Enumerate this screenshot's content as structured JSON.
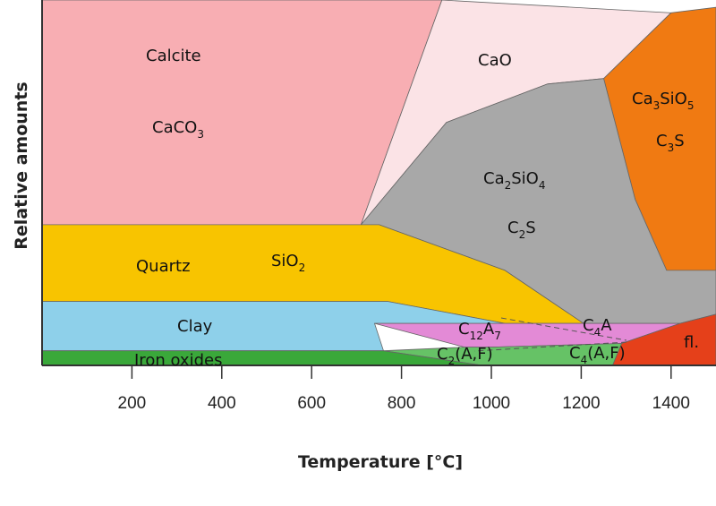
{
  "chart_data": {
    "type": "area",
    "xlabel": "Temperature [°C]",
    "ylabel": "Relative amounts",
    "xlim": [
      0,
      1500
    ],
    "x_ticks": [
      200,
      400,
      600,
      800,
      1000,
      1200,
      1400
    ],
    "regions": [
      {
        "name": "Calcite",
        "formula": "CaCO₃",
        "color": "#f8aeb3",
        "boundary": [
          [
            0,
            1.0
          ],
          [
            890,
            1.0
          ],
          [
            710,
            0.385
          ],
          [
            0,
            0.385
          ]
        ]
      },
      {
        "name": "",
        "formula": "CaO",
        "color": "#fbe3e6",
        "boundary": [
          [
            890,
            1.0
          ],
          [
            1400,
            0.965
          ],
          [
            1250,
            0.785
          ],
          [
            1125,
            0.77
          ],
          [
            900,
            0.665
          ],
          [
            710,
            0.385
          ]
        ]
      },
      {
        "name": "",
        "formula": "Ca₃SiO₅",
        "formula2": "C₃S",
        "color": "#f07a12",
        "boundary": [
          [
            1400,
            0.965
          ],
          [
            1500,
            0.98
          ],
          [
            1500,
            0.26
          ],
          [
            1390,
            0.26
          ],
          [
            1320,
            0.455
          ],
          [
            1250,
            0.785
          ]
        ]
      },
      {
        "name": "",
        "formula": "Ca₂SiO₄",
        "formula2": "C₂S",
        "color": "#a8a8a8",
        "boundary": [
          [
            710,
            0.385
          ],
          [
            900,
            0.665
          ],
          [
            1125,
            0.77
          ],
          [
            1250,
            0.785
          ],
          [
            1320,
            0.455
          ],
          [
            1390,
            0.26
          ],
          [
            1500,
            0.26
          ],
          [
            1500,
            0.14
          ],
          [
            1420,
            0.115
          ],
          [
            1205,
            0.115
          ],
          [
            1030,
            0.26
          ],
          [
            750,
            0.385
          ]
        ]
      },
      {
        "name": "Quartz",
        "formula": "SiO₂",
        "color": "#f8c400",
        "boundary": [
          [
            0,
            0.385
          ],
          [
            750,
            0.385
          ],
          [
            1030,
            0.26
          ],
          [
            1205,
            0.115
          ],
          [
            1030,
            0.115
          ],
          [
            770,
            0.175
          ],
          [
            0,
            0.175
          ]
        ]
      },
      {
        "name": "Clay",
        "formula": "",
        "color": "#8ed0ea",
        "boundary": [
          [
            0,
            0.175
          ],
          [
            770,
            0.175
          ],
          [
            1030,
            0.115
          ],
          [
            740,
            0.115
          ],
          [
            760,
            0.04
          ],
          [
            0,
            0.04
          ]
        ]
      },
      {
        "name": "",
        "formula": "C₁₂A₇",
        "formula2": "C₄A",
        "color": "#e38ad6",
        "boundary": [
          [
            740,
            0.115
          ],
          [
            1420,
            0.115
          ],
          [
            1290,
            0.06
          ],
          [
            1000,
            0.05
          ],
          [
            940,
            0.05
          ]
        ]
      },
      {
        "name": "",
        "formula": "C₂(A,F)",
        "formula2": "C₄(A,F)",
        "color": "#66c266",
        "boundary": [
          [
            760,
            0.04
          ],
          [
            940,
            0.05
          ],
          [
            1000,
            0.05
          ],
          [
            1290,
            0.06
          ],
          [
            1270,
            0.0
          ],
          [
            980,
            0.0
          ]
        ]
      },
      {
        "name": "Iron oxides",
        "formula": "",
        "color": "#3aa83a",
        "boundary": [
          [
            0,
            0.04
          ],
          [
            760,
            0.04
          ],
          [
            980,
            0.0
          ],
          [
            0,
            0.0
          ]
        ]
      },
      {
        "name": "",
        "formula": "fl.",
        "color": "#e5401a",
        "boundary": [
          [
            1290,
            0.06
          ],
          [
            1420,
            0.115
          ],
          [
            1500,
            0.14
          ],
          [
            1500,
            0.0
          ],
          [
            1330,
            0.0
          ],
          [
            1270,
            0.0
          ]
        ]
      }
    ],
    "labels": {
      "calcite": "Calcite",
      "caco3_main": "CaCO",
      "caco3_sub": "3",
      "cao": "CaO",
      "c3s_a": "Ca",
      "c3s_b": "3",
      "c3s_c": "SiO",
      "c3s_d": "5",
      "c3s2_a": "C",
      "c3s2_b": "3",
      "c3s2_c": "S",
      "c2s_a": "Ca",
      "c2s_b": "2",
      "c2s_c": "SiO",
      "c2s_d": "4",
      "c2s2_a": "C",
      "c2s2_b": "2",
      "c2s2_c": "S",
      "quartz": "Quartz",
      "sio2_a": "SiO",
      "sio2_b": "2",
      "clay": "Clay",
      "c12a7_a": "C",
      "c12a7_b": "12",
      "c12a7_c": "A",
      "c12a7_d": "7",
      "c4a_a": "C",
      "c4a_b": "4",
      "c4a_c": "A",
      "c2af_a": "C",
      "c2af_b": "2",
      "c2af_c": "(A,F)",
      "c4af_a": "C",
      "c4af_b": "4",
      "c4af_c": "(A,F)",
      "iron": "Iron oxides",
      "fl": "fl."
    }
  }
}
